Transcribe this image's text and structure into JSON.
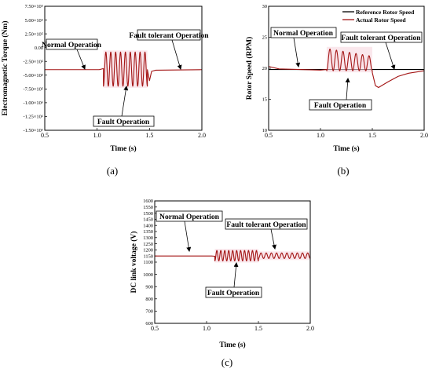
{
  "chart_data": [
    {
      "id": "a",
      "type": "line",
      "caption": "(a)",
      "xlabel": "Time (s)",
      "ylabel": "Electromagnetic Torque (Nm)",
      "xlim": [
        0.5,
        2.0
      ],
      "ylim": [
        -1500000,
        750000
      ],
      "x_ticks": [
        0.5,
        1.0,
        1.5,
        2.0
      ],
      "x_tick_labels": [
        "0.5",
        "1.0",
        "1.5",
        "2.0"
      ],
      "y_ticks": [
        750000,
        500000,
        250000,
        0,
        -250000,
        -500000,
        -750000,
        -1000000,
        -1250000,
        -1500000
      ],
      "y_tick_labels": [
        "7.50×10⁵",
        "5.00×10⁵",
        "2.50×10⁵",
        "0.00",
        "-2.50×10⁵",
        "-5.00×10⁵",
        "-7.50×10⁵",
        "-1.00×10⁶",
        "-1.25×10⁶",
        "-1.50×10⁶"
      ],
      "series": [
        {
          "name": "",
          "color": "#a31515",
          "baseline": [
            [
              0.5,
              -400000
            ],
            [
              1.02,
              -400000
            ],
            [
              1.06,
              -380000
            ]
          ],
          "fault": {
            "x_start": 1.06,
            "x_end": 1.48,
            "cycles": 9,
            "upper": -80000,
            "lower": -700000
          },
          "tail": [
            [
              1.48,
              -400000
            ],
            [
              1.5,
              -600000
            ],
            [
              1.52,
              -430000
            ],
            [
              1.56,
              -410000
            ],
            [
              2.0,
              -400000
            ]
          ]
        }
      ],
      "annotations": [
        {
          "text": "Normal Operation",
          "box": true
        },
        {
          "text": "Fault tolerant Operation",
          "box": true
        },
        {
          "text": "Fault Operation",
          "box": true
        }
      ]
    },
    {
      "id": "b",
      "type": "line",
      "caption": "(b)",
      "xlabel": "Time (s)",
      "ylabel": "Rotor Speed (RPM)",
      "xlim": [
        0.5,
        2.0
      ],
      "ylim": [
        10,
        30
      ],
      "x_ticks": [
        0.5,
        1.0,
        1.5,
        2.0
      ],
      "x_tick_labels": [
        "0.5",
        "1.0",
        "1.5",
        "2.0"
      ],
      "y_ticks": [
        10,
        15,
        20,
        25,
        30
      ],
      "y_tick_labels": [
        "10",
        "15",
        "20",
        "25",
        "30"
      ],
      "legend_position": "top-right",
      "series": [
        {
          "name": "Reference Rotor Speed",
          "color": "#000000",
          "points": [
            [
              0.5,
              19.8
            ],
            [
              2.0,
              19.8
            ]
          ]
        },
        {
          "name": "Actual Rotor Speed",
          "color": "#a31515",
          "baseline": [
            [
              0.5,
              20.3
            ],
            [
              0.6,
              19.9
            ],
            [
              1.0,
              19.7
            ],
            [
              1.06,
              19.8
            ]
          ],
          "fault": {
            "x_start": 1.06,
            "x_end": 1.5,
            "cycles": 7,
            "upper": 23.2,
            "lower": 19.6,
            "decay": true
          },
          "tail": [
            [
              1.5,
              19.3
            ],
            [
              1.53,
              17.2
            ],
            [
              1.56,
              16.9
            ],
            [
              1.65,
              17.8
            ],
            [
              1.75,
              18.7
            ],
            [
              1.85,
              19.2
            ],
            [
              2.0,
              19.6
            ]
          ]
        }
      ],
      "annotations": [
        {
          "text": "Normal Operation",
          "box": true
        },
        {
          "text": "Fault tolerant Operation",
          "box": true
        },
        {
          "text": "Fault Operation",
          "box": true
        }
      ]
    },
    {
      "id": "c",
      "type": "line",
      "caption": "(c)",
      "xlabel": "Time (s)",
      "ylabel": "DC link voltage (V)",
      "xlim": [
        0.5,
        2.0
      ],
      "ylim": [
        600,
        1600
      ],
      "x_ticks": [
        0.5,
        1.0,
        1.5,
        2.0
      ],
      "x_tick_labels": [
        "0.5",
        "1.0",
        "1.5",
        "2.0"
      ],
      "y_ticks": [
        600,
        700,
        800,
        900,
        1000,
        1100,
        1150,
        1200,
        1250,
        1300,
        1350,
        1400,
        1450,
        1500,
        1550,
        1600
      ],
      "y_tick_labels": [
        "600",
        "700",
        "800",
        "900",
        "1000",
        "1100",
        "1150",
        "1200",
        "1250",
        "1300",
        "1350",
        "1400",
        "1450",
        "1500",
        "1550",
        "1600"
      ],
      "series": [
        {
          "name": "",
          "color": "#a31515",
          "baseline": [
            [
              0.5,
              1150
            ],
            [
              1.05,
              1150
            ],
            [
              1.08,
              1148
            ]
          ],
          "fault": {
            "x_start": 1.08,
            "x_end": 1.5,
            "cycles": 11,
            "upper": 1195,
            "lower": 1110
          },
          "tail_wave": {
            "x_start": 1.5,
            "x_end": 2.0,
            "cycles": 10,
            "upper": 1175,
            "lower": 1130
          }
        }
      ],
      "annotations": [
        {
          "text": "Normal Operation",
          "box": true
        },
        {
          "text": "Fault tolerant Operation",
          "box": true
        },
        {
          "text": "Fault Operation",
          "box": true
        }
      ]
    }
  ]
}
